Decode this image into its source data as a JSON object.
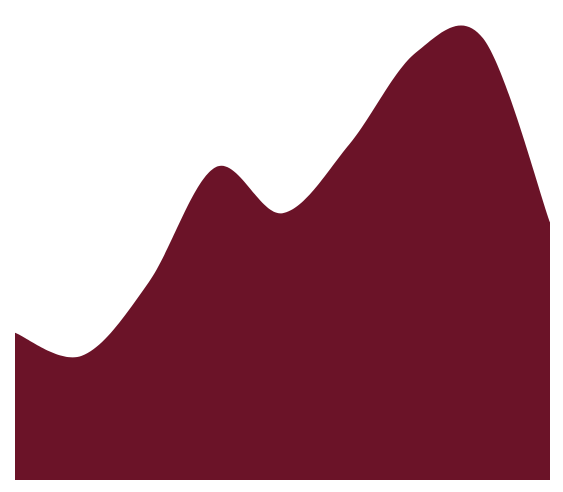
{
  "chart_data": {
    "type": "area",
    "title": "",
    "xlabel": "",
    "ylabel": "",
    "x": [
      0,
      1,
      2,
      3,
      4,
      5,
      6,
      7,
      8
    ],
    "series": [
      {
        "values": [
          0.32,
          0.27,
          0.43,
          0.68,
          0.58,
          0.73,
          0.93,
          0.96,
          0.56
        ]
      }
    ],
    "xlim": [
      0,
      8
    ],
    "ylim": [
      0,
      1
    ],
    "grid": false,
    "axes_visible": false,
    "colors": {
      "fill": "#6b1328",
      "background": "#ffffff"
    }
  }
}
